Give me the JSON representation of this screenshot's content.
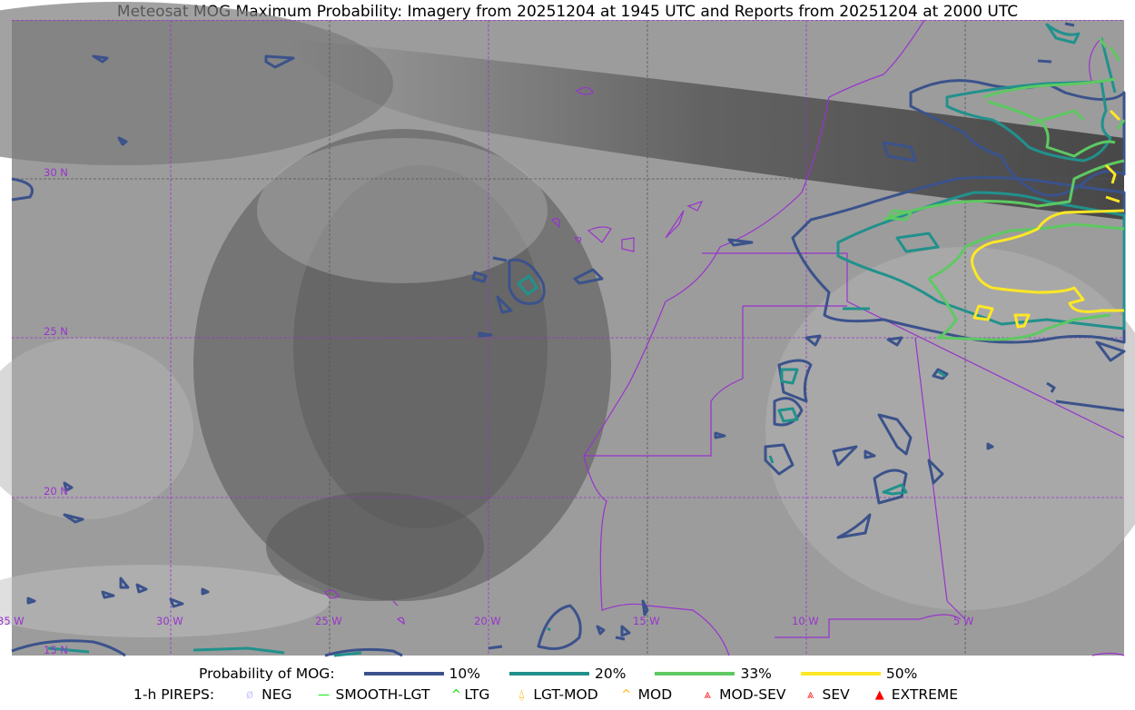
{
  "title": "Meteosat MOG Maximum Probability: Imagery from 20251204 at 1945 UTC and Reports from 20251204 at 2000 UTC",
  "map": {
    "lon_labels": [
      "35 W",
      "30 W",
      "25 W",
      "20 W",
      "15 W",
      "10 W",
      "5 W"
    ],
    "lat_labels": [
      "30 N",
      "25 N",
      "20 N",
      "15 N"
    ],
    "border_color": "#9933cc",
    "grid_color": "#9933cc"
  },
  "legend": {
    "prob_label": "Probability of MOG:",
    "levels": [
      {
        "label": "10%",
        "color": "#3b528b"
      },
      {
        "label": "20%",
        "color": "#21918c"
      },
      {
        "label": "33%",
        "color": "#5ec962"
      },
      {
        "label": "50%",
        "color": "#fde725"
      }
    ],
    "pireps_label": "1-h PIREPS:",
    "pireps": [
      {
        "label": "NEG",
        "icon": "neg-circle-icon",
        "color": "#c8c8ff"
      },
      {
        "label": "SMOOTH-LGT",
        "icon": "line-icon",
        "color": "#00ee00"
      },
      {
        "label": "LTG",
        "icon": "caret-icon",
        "color": "#00dd00"
      },
      {
        "label": "LGT-MOD",
        "icon": "caret-bar-icon",
        "color": "#ffb300"
      },
      {
        "label": "MOD",
        "icon": "caret-icon",
        "color": "#ffb300"
      },
      {
        "label": "MOD-SEV",
        "icon": "double-caret-bar-icon",
        "color": "#ff2222"
      },
      {
        "label": "SEV",
        "icon": "double-caret-icon",
        "color": "#ff2222"
      },
      {
        "label": "EXTREME",
        "icon": "filled-triangle-icon",
        "color": "#ff0000"
      }
    ]
  }
}
